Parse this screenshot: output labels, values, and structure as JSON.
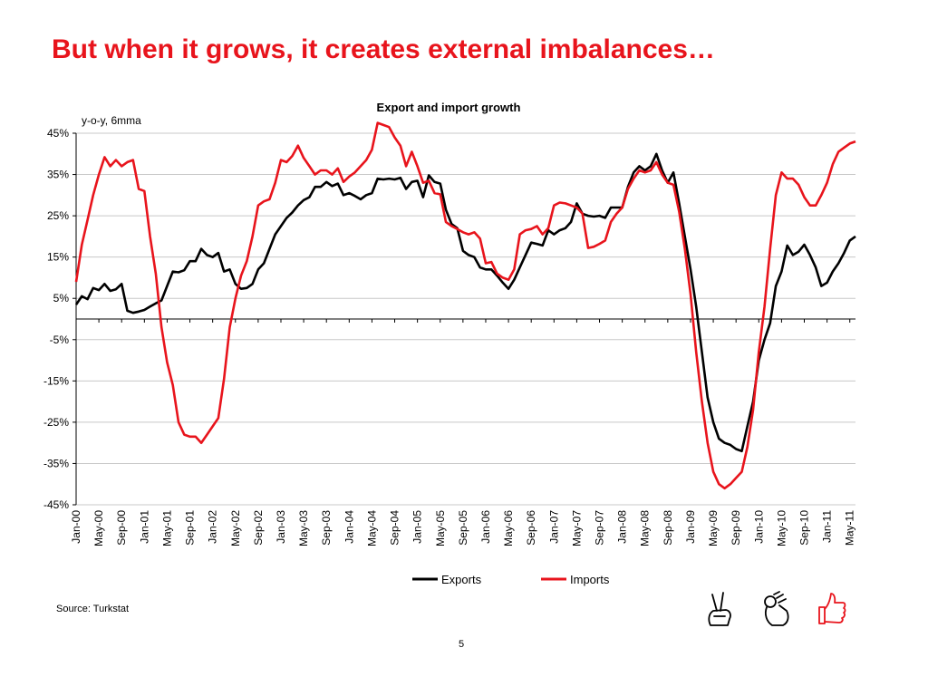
{
  "slide": {
    "title": "But when it grows, it creates external imbalances…",
    "source": "Source: Turkstat",
    "page_number": "5"
  },
  "icons": [
    "victory-hand-icon",
    "ok-hand-icon",
    "thumbs-up-icon"
  ],
  "colors": {
    "title": "#e8141c",
    "exports": "#000000",
    "imports": "#e8141c",
    "grid": "#c8c8c8"
  },
  "chart_data": {
    "type": "line",
    "title": "Export and import growth",
    "unit_label": "y-o-y, 6mma",
    "ylim": [
      -45,
      45
    ],
    "yticks": [
      45,
      35,
      25,
      15,
      5,
      -5,
      -15,
      -25,
      -35,
      -45
    ],
    "ytick_labels": [
      "45%",
      "35%",
      "25%",
      "15%",
      "5%",
      "-5%",
      "-15%",
      "-25%",
      "-35%",
      "-45%"
    ],
    "x_start": "2000-01",
    "x_end": "2011-06",
    "xtick_labels": [
      "Jan-00",
      "May-00",
      "Sep-00",
      "Jan-01",
      "May-01",
      "Sep-01",
      "Jan-02",
      "May-02",
      "Sep-02",
      "Jan-03",
      "May-03",
      "Sep-03",
      "Jan-04",
      "May-04",
      "Sep-04",
      "Jan-05",
      "May-05",
      "Sep-05",
      "Jan-06",
      "May-06",
      "Sep-06",
      "Jan-07",
      "May-07",
      "Sep-07",
      "Jan-08",
      "May-08",
      "Sep-08",
      "Jan-09",
      "May-09",
      "Sep-09",
      "Jan-10",
      "May-10",
      "Sep-10",
      "Jan-11",
      "May-11"
    ],
    "grid": true,
    "legend": "bottom",
    "series": [
      {
        "name": "Exports",
        "color": "#000000",
        "points": [
          [
            "2000-01",
            3.5
          ],
          [
            "2000-02",
            5.5
          ],
          [
            "2000-03",
            4.8
          ],
          [
            "2000-04",
            7.5
          ],
          [
            "2000-05",
            7
          ],
          [
            "2000-06",
            8.5
          ],
          [
            "2000-07",
            6.8
          ],
          [
            "2000-08",
            7.2
          ],
          [
            "2000-09",
            8.5
          ],
          [
            "2000-10",
            2
          ],
          [
            "2000-11",
            1.5
          ],
          [
            "2000-12",
            1.8
          ],
          [
            "2001-01",
            2.2
          ],
          [
            "2001-02",
            3
          ],
          [
            "2001-03",
            3.8
          ],
          [
            "2001-04",
            4.5
          ],
          [
            "2001-05",
            8
          ],
          [
            "2001-06",
            11.5
          ],
          [
            "2001-07",
            11.3
          ],
          [
            "2001-08",
            11.8
          ],
          [
            "2001-09",
            14
          ],
          [
            "2001-10",
            14
          ],
          [
            "2001-11",
            17
          ],
          [
            "2001-12",
            15.5
          ],
          [
            "2002-01",
            15
          ],
          [
            "2002-02",
            16
          ],
          [
            "2002-03",
            11.5
          ],
          [
            "2002-04",
            12
          ],
          [
            "2002-05",
            8.5
          ],
          [
            "2002-06",
            7.3
          ],
          [
            "2002-07",
            7.5
          ],
          [
            "2002-08",
            8.5
          ],
          [
            "2002-09",
            12
          ],
          [
            "2002-10",
            13.5
          ],
          [
            "2002-11",
            17
          ],
          [
            "2002-12",
            20.5
          ],
          [
            "2003-01",
            22.5
          ],
          [
            "2003-02",
            24.5
          ],
          [
            "2003-03",
            25.8
          ],
          [
            "2003-04",
            27.5
          ],
          [
            "2003-05",
            28.8
          ],
          [
            "2003-06",
            29.5
          ],
          [
            "2003-07",
            32
          ],
          [
            "2003-08",
            32
          ],
          [
            "2003-09",
            33.2
          ],
          [
            "2003-10",
            32.2
          ],
          [
            "2003-11",
            32.8
          ],
          [
            "2003-12",
            30
          ],
          [
            "2004-01",
            30.5
          ],
          [
            "2004-02",
            29.8
          ],
          [
            "2004-03",
            29
          ],
          [
            "2004-04",
            30
          ],
          [
            "2004-05",
            30.5
          ],
          [
            "2004-06",
            34
          ],
          [
            "2004-07",
            33.8
          ],
          [
            "2004-08",
            34
          ],
          [
            "2004-09",
            33.8
          ],
          [
            "2004-10",
            34.2
          ],
          [
            "2004-11",
            31.5
          ],
          [
            "2004-12",
            33.2
          ],
          [
            "2005-01",
            33.5
          ],
          [
            "2005-02",
            29.5
          ],
          [
            "2005-03",
            34.8
          ],
          [
            "2005-04",
            33.2
          ],
          [
            "2005-05",
            32.8
          ],
          [
            "2005-06",
            26.5
          ],
          [
            "2005-07",
            23
          ],
          [
            "2005-08",
            22
          ],
          [
            "2005-09",
            16.5
          ],
          [
            "2005-10",
            15.5
          ],
          [
            "2005-11",
            15
          ],
          [
            "2005-12",
            12.5
          ],
          [
            "2006-01",
            12
          ],
          [
            "2006-02",
            12
          ],
          [
            "2006-03",
            10.5
          ],
          [
            "2006-04",
            8.8
          ],
          [
            "2006-05",
            7.3
          ],
          [
            "2006-06",
            9.5
          ],
          [
            "2006-07",
            12.5
          ],
          [
            "2006-08",
            15.5
          ],
          [
            "2006-09",
            18.5
          ],
          [
            "2006-10",
            18.2
          ],
          [
            "2006-11",
            17.8
          ],
          [
            "2006-12",
            21.5
          ],
          [
            "2007-01",
            20.5
          ],
          [
            "2007-02",
            21.5
          ],
          [
            "2007-03",
            22
          ],
          [
            "2007-04",
            23.5
          ],
          [
            "2007-05",
            28
          ],
          [
            "2007-06",
            25.5
          ],
          [
            "2007-07",
            25
          ],
          [
            "2007-08",
            24.8
          ],
          [
            "2007-09",
            25
          ],
          [
            "2007-10",
            24.5
          ],
          [
            "2007-11",
            27
          ],
          [
            "2007-12",
            27
          ],
          [
            "2008-01",
            27
          ],
          [
            "2008-02",
            32
          ],
          [
            "2008-03",
            35.5
          ],
          [
            "2008-04",
            37
          ],
          [
            "2008-05",
            36
          ],
          [
            "2008-06",
            37
          ],
          [
            "2008-07",
            40
          ],
          [
            "2008-08",
            36
          ],
          [
            "2008-09",
            33
          ],
          [
            "2008-10",
            35.5
          ],
          [
            "2008-11",
            28
          ],
          [
            "2008-12",
            20
          ],
          [
            "2009-01",
            12
          ],
          [
            "2009-02",
            3
          ],
          [
            "2009-03",
            -8
          ],
          [
            "2009-04",
            -19
          ],
          [
            "2009-05",
            -25
          ],
          [
            "2009-06",
            -29
          ],
          [
            "2009-07",
            -30
          ],
          [
            "2009-08",
            -30.5
          ],
          [
            "2009-09",
            -31.5
          ],
          [
            "2009-10",
            -32
          ],
          [
            "2009-11",
            -26
          ],
          [
            "2009-12",
            -20
          ],
          [
            "2010-01",
            -10
          ],
          [
            "2010-02",
            -5
          ],
          [
            "2010-03",
            -1
          ],
          [
            "2010-04",
            8
          ],
          [
            "2010-05",
            11.5
          ],
          [
            "2010-06",
            17.8
          ],
          [
            "2010-07",
            15.5
          ],
          [
            "2010-08",
            16.3
          ],
          [
            "2010-09",
            18
          ],
          [
            "2010-10",
            15.5
          ],
          [
            "2010-11",
            12.5
          ],
          [
            "2010-12",
            8
          ],
          [
            "2011-01",
            8.8
          ],
          [
            "2011-02",
            11.5
          ],
          [
            "2011-03",
            13.5
          ],
          [
            "2011-04",
            16
          ],
          [
            "2011-05",
            19
          ],
          [
            "2011-06",
            20
          ]
        ]
      },
      {
        "name": "Imports",
        "color": "#e8141c",
        "points": [
          [
            "2000-01",
            9
          ],
          [
            "2000-02",
            18
          ],
          [
            "2000-03",
            24
          ],
          [
            "2000-04",
            30
          ],
          [
            "2000-05",
            35
          ],
          [
            "2000-06",
            39.2
          ],
          [
            "2000-07",
            37
          ],
          [
            "2000-08",
            38.5
          ],
          [
            "2000-09",
            37
          ],
          [
            "2000-10",
            38
          ],
          [
            "2000-11",
            38.5
          ],
          [
            "2000-12",
            31.5
          ],
          [
            "2001-01",
            31
          ],
          [
            "2001-02",
            20
          ],
          [
            "2001-03",
            11
          ],
          [
            "2001-04",
            -2
          ],
          [
            "2001-05",
            -10.5
          ],
          [
            "2001-06",
            -16
          ],
          [
            "2001-07",
            -25
          ],
          [
            "2001-08",
            -28
          ],
          [
            "2001-09",
            -28.5
          ],
          [
            "2001-10",
            -28.5
          ],
          [
            "2001-11",
            -30
          ],
          [
            "2001-12",
            -28
          ],
          [
            "2002-01",
            -26
          ],
          [
            "2002-02",
            -24
          ],
          [
            "2002-03",
            -14.5
          ],
          [
            "2002-04",
            -2
          ],
          [
            "2002-05",
            5
          ],
          [
            "2002-06",
            10.5
          ],
          [
            "2002-07",
            14
          ],
          [
            "2002-08",
            20
          ],
          [
            "2002-09",
            27.5
          ],
          [
            "2002-10",
            28.5
          ],
          [
            "2002-11",
            29
          ],
          [
            "2002-12",
            33
          ],
          [
            "2003-01",
            38.5
          ],
          [
            "2003-02",
            38
          ],
          [
            "2003-03",
            39.5
          ],
          [
            "2003-04",
            42
          ],
          [
            "2003-05",
            39
          ],
          [
            "2003-06",
            37
          ],
          [
            "2003-07",
            35
          ],
          [
            "2003-08",
            36
          ],
          [
            "2003-09",
            36
          ],
          [
            "2003-10",
            35
          ],
          [
            "2003-11",
            36.5
          ],
          [
            "2003-12",
            33.2
          ],
          [
            "2004-01",
            34.5
          ],
          [
            "2004-02",
            35.5
          ],
          [
            "2004-03",
            37
          ],
          [
            "2004-04",
            38.5
          ],
          [
            "2004-05",
            41
          ],
          [
            "2004-06",
            47.5
          ],
          [
            "2004-07",
            47
          ],
          [
            "2004-08",
            46.5
          ],
          [
            "2004-09",
            44
          ],
          [
            "2004-10",
            42
          ],
          [
            "2004-11",
            37
          ],
          [
            "2004-12",
            40.5
          ],
          [
            "2005-01",
            37
          ],
          [
            "2005-02",
            33
          ],
          [
            "2005-03",
            33.5
          ],
          [
            "2005-04",
            30.5
          ],
          [
            "2005-05",
            30.2
          ],
          [
            "2005-06",
            23.5
          ],
          [
            "2005-07",
            22.5
          ],
          [
            "2005-08",
            21.8
          ],
          [
            "2005-09",
            21
          ],
          [
            "2005-10",
            20.5
          ],
          [
            "2005-11",
            21
          ],
          [
            "2005-12",
            19.5
          ],
          [
            "2006-01",
            13.5
          ],
          [
            "2006-02",
            13.8
          ],
          [
            "2006-03",
            11
          ],
          [
            "2006-04",
            10
          ],
          [
            "2006-05",
            9.5
          ],
          [
            "2006-06",
            12
          ],
          [
            "2006-07",
            20.5
          ],
          [
            "2006-08",
            21.5
          ],
          [
            "2006-09",
            21.8
          ],
          [
            "2006-10",
            22.5
          ],
          [
            "2006-11",
            20.5
          ],
          [
            "2006-12",
            22
          ],
          [
            "2007-01",
            27.5
          ],
          [
            "2007-02",
            28.2
          ],
          [
            "2007-03",
            28
          ],
          [
            "2007-04",
            27.5
          ],
          [
            "2007-05",
            27
          ],
          [
            "2007-06",
            25.5
          ],
          [
            "2007-07",
            17.2
          ],
          [
            "2007-08",
            17.5
          ],
          [
            "2007-09",
            18.2
          ],
          [
            "2007-10",
            19
          ],
          [
            "2007-11",
            23.5
          ],
          [
            "2007-12",
            25.5
          ],
          [
            "2008-01",
            27
          ],
          [
            "2008-02",
            31.5
          ],
          [
            "2008-03",
            34
          ],
          [
            "2008-04",
            36
          ],
          [
            "2008-05",
            35.5
          ],
          [
            "2008-06",
            36
          ],
          [
            "2008-07",
            38
          ],
          [
            "2008-08",
            35
          ],
          [
            "2008-09",
            33
          ],
          [
            "2008-10",
            32.5
          ],
          [
            "2008-11",
            26
          ],
          [
            "2008-12",
            17
          ],
          [
            "2009-01",
            6
          ],
          [
            "2009-02",
            -8
          ],
          [
            "2009-03",
            -20
          ],
          [
            "2009-04",
            -30
          ],
          [
            "2009-05",
            -37
          ],
          [
            "2009-06",
            -40
          ],
          [
            "2009-07",
            -41
          ],
          [
            "2009-08",
            -40
          ],
          [
            "2009-09",
            -38.5
          ],
          [
            "2009-10",
            -37
          ],
          [
            "2009-11",
            -31
          ],
          [
            "2009-12",
            -22
          ],
          [
            "2010-01",
            -8
          ],
          [
            "2010-02",
            3
          ],
          [
            "2010-03",
            17
          ],
          [
            "2010-04",
            30
          ],
          [
            "2010-05",
            35.5
          ],
          [
            "2010-06",
            34
          ],
          [
            "2010-07",
            34
          ],
          [
            "2010-08",
            32.5
          ],
          [
            "2010-09",
            29.5
          ],
          [
            "2010-10",
            27.5
          ],
          [
            "2010-11",
            27.5
          ],
          [
            "2010-12",
            30
          ],
          [
            "2011-01",
            33
          ],
          [
            "2011-02",
            37.5
          ],
          [
            "2011-03",
            40.5
          ],
          [
            "2011-04",
            41.5
          ],
          [
            "2011-05",
            42.5
          ],
          [
            "2011-06",
            43
          ]
        ]
      }
    ]
  }
}
